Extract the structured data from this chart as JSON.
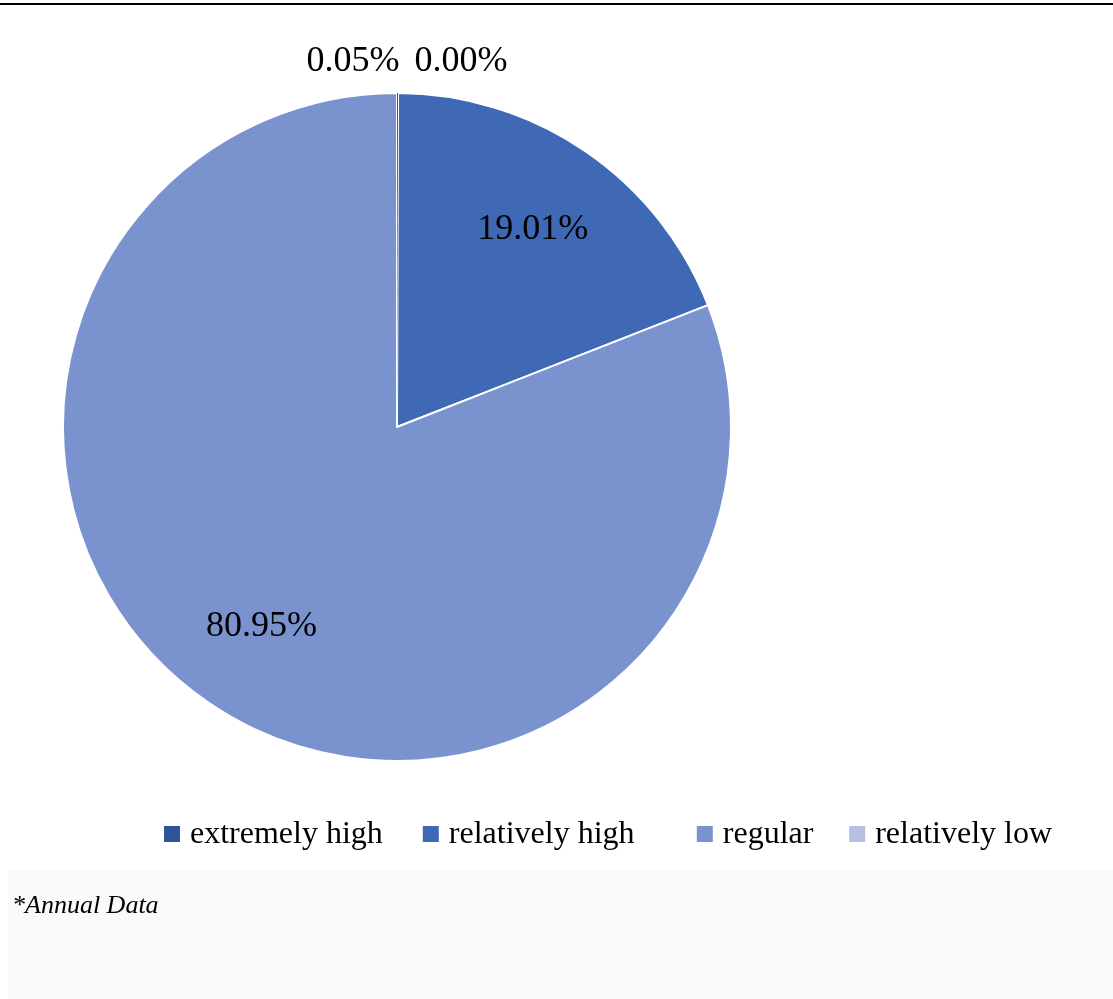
{
  "chart_data": {
    "type": "pie",
    "categories": [
      "extremely high",
      "relatively high",
      "regular",
      "relatively low"
    ],
    "values": [
      0.05,
      19.01,
      80.95,
      0.0
    ],
    "colors": [
      "#2f5597",
      "#3f69b5",
      "#7a93cf",
      "#b4c0e2"
    ],
    "value_labels": [
      "0.05%",
      "19.01%",
      "80.95%",
      "0.00%"
    ],
    "legend": "bottom",
    "annotations": [
      "*Annual Data"
    ]
  }
}
